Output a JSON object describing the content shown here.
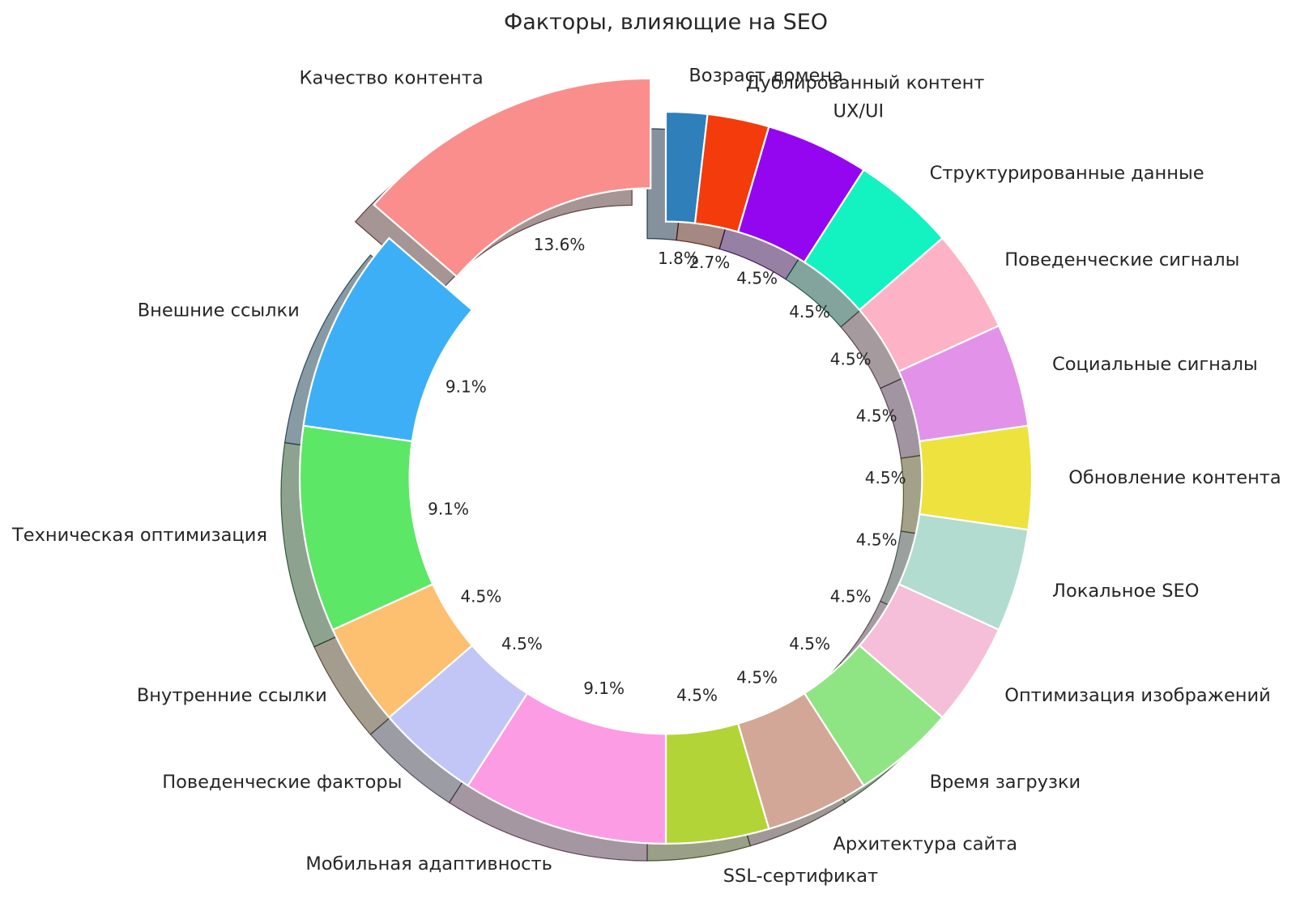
{
  "chart_data": {
    "type": "pie",
    "subtype": "donut",
    "title": "Факторы, влияющие на SEO",
    "legend": "none",
    "background": "#ffffff",
    "text_color": "#262626",
    "slices": [
      {
        "label": "Возраст домена",
        "value": 2,
        "pct": "1.8%",
        "color": "#2E7FBA",
        "explode": 0
      },
      {
        "label": "Дублированный контент",
        "value": 3,
        "pct": "2.7%",
        "color": "#F43B0C",
        "explode": 0
      },
      {
        "label": "UX/UI",
        "value": 5,
        "pct": "4.5%",
        "color": "#9506F0",
        "explode": 0
      },
      {
        "label": "Структурированные данные",
        "value": 5,
        "pct": "4.5%",
        "color": "#13F2C1",
        "explode": 0
      },
      {
        "label": "Поведенческие сигналы",
        "value": 5,
        "pct": "4.5%",
        "color": "#FDB3C5",
        "explode": 0
      },
      {
        "label": "Социальные сигналы",
        "value": 5,
        "pct": "4.5%",
        "color": "#E292E8",
        "explode": 0
      },
      {
        "label": "Обновление контента",
        "value": 5,
        "pct": "4.5%",
        "color": "#EEE23F",
        "explode": 0
      },
      {
        "label": "Локальное SEO",
        "value": 5,
        "pct": "4.5%",
        "color": "#B2DCCF",
        "explode": 0
      },
      {
        "label": "Оптимизация изображений",
        "value": 5,
        "pct": "4.5%",
        "color": "#F5BED9",
        "explode": 0
      },
      {
        "label": "Время загрузки",
        "value": 5,
        "pct": "4.5%",
        "color": "#8FE583",
        "explode": 0
      },
      {
        "label": "Архитектура сайта",
        "value": 5,
        "pct": "4.5%",
        "color": "#D2A797",
        "explode": 0
      },
      {
        "label": "SSL-сертификат",
        "value": 5,
        "pct": "4.5%",
        "color": "#B2D436",
        "explode": 0
      },
      {
        "label": "Мобильная адаптивность",
        "value": 10,
        "pct": "9.1%",
        "color": "#FC9CE5",
        "explode": 0
      },
      {
        "label": "Поведенческие факторы",
        "value": 5,
        "pct": "4.5%",
        "color": "#C2C6F6",
        "explode": 0
      },
      {
        "label": "Внутренние ссылки",
        "value": 5,
        "pct": "4.5%",
        "color": "#FDBF70",
        "explode": 0
      },
      {
        "label": "Техническая оптимизация",
        "value": 10,
        "pct": "9.1%",
        "color": "#5CE766",
        "explode": 0
      },
      {
        "label": "Внешние ссылки",
        "value": 10,
        "pct": "9.1%",
        "color": "#3DAFF7",
        "explode": 0
      },
      {
        "label": "Качество контента",
        "value": 15,
        "pct": "13.6%",
        "color": "#FA8E8C",
        "explode": 0.1
      }
    ],
    "layout": {
      "start_angle_deg": 90,
      "direction": "clockwise",
      "hole_ratio": 0.7,
      "pct_distance": 0.6,
      "label_distance": 1.1,
      "shadow": true,
      "wedge_edge_color": "#ffffff"
    }
  }
}
